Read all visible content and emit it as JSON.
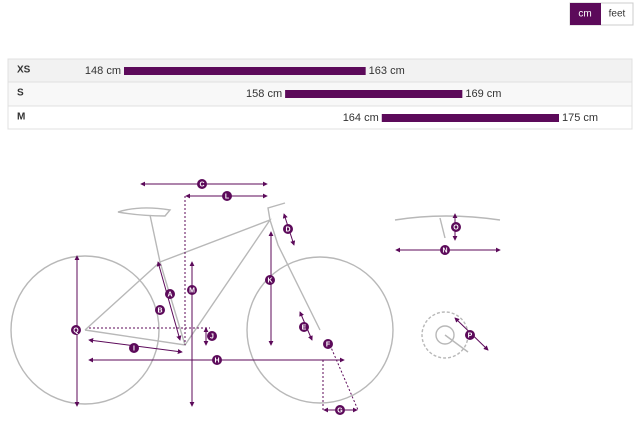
{
  "toggle": {
    "options": [
      "cm",
      "feet"
    ]
  },
  "chart_data": {
    "type": "range",
    "categories": [
      "XS",
      "S",
      "M"
    ],
    "starts": [
      148,
      158,
      164
    ],
    "ends": [
      163,
      169,
      175
    ],
    "start_labels": [
      "148 cm",
      "158 cm",
      "164 cm"
    ],
    "end_labels": [
      "163 cm",
      "169 cm",
      "175 cm"
    ],
    "color": "#5c0a5a"
  },
  "diagram": {
    "labels": [
      "C",
      "L",
      "D",
      "K",
      "A",
      "M",
      "B",
      "E",
      "J",
      "Q",
      "F",
      "I",
      "H",
      "G",
      "O",
      "N",
      "P"
    ]
  }
}
